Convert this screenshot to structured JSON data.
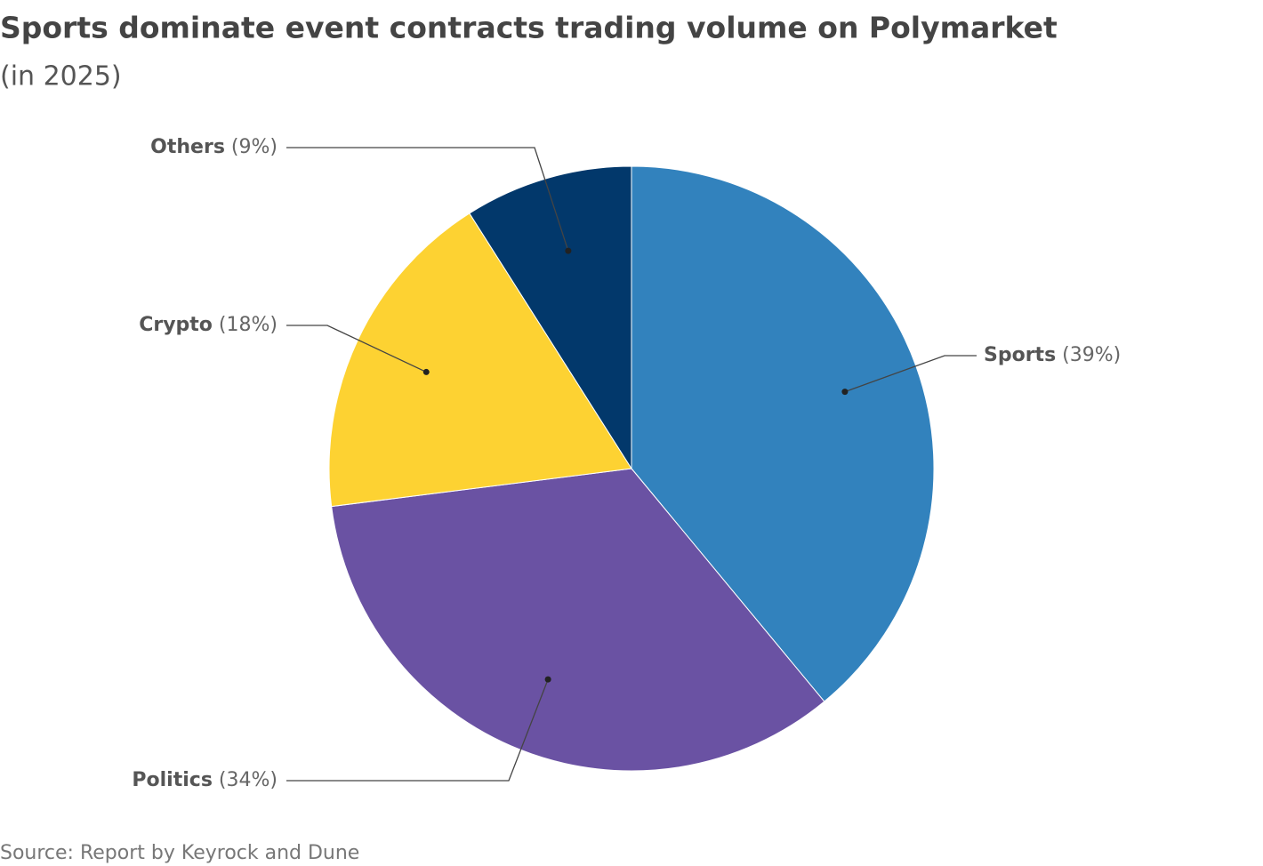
{
  "chart_data": {
    "type": "pie",
    "title": "Sports dominate event contracts trading volume on Polymarket",
    "subtitle": "(in 2025)",
    "source": "Source: Report by Keyrock and Dune",
    "categories": [
      "Sports",
      "Politics",
      "Crypto",
      "Others"
    ],
    "values": [
      39,
      34,
      18,
      9
    ],
    "value_labels": [
      "(39%)",
      "(34%)",
      "(18%)",
      "(9%)"
    ],
    "colors": [
      "#3282bd",
      "#6a52a3",
      "#fdd232",
      "#02386b"
    ]
  }
}
